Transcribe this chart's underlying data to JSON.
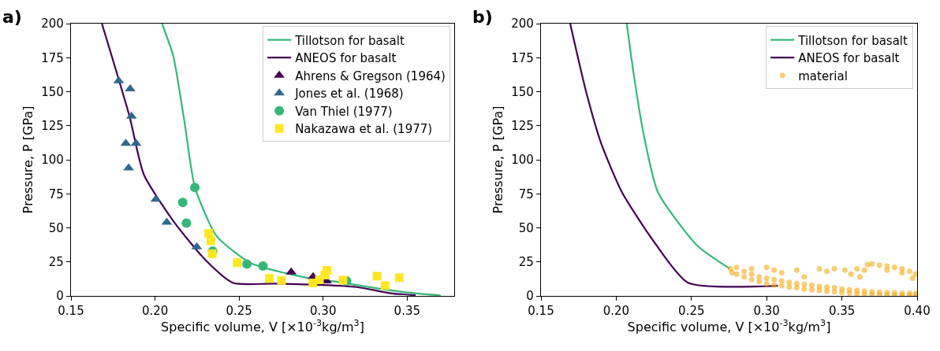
{
  "chart_data": [
    {
      "type": "line",
      "title": "a)",
      "xlabel": "Specific volume, V [×10$^{-3}$kg/m$^{3}$]",
      "ylabel": "Pressure, P [GPa]",
      "xlim": [
        0.15,
        0.378
      ],
      "xticks": [
        {
          "value": 0.15,
          "label": "0.15"
        },
        {
          "value": 0.2,
          "label": "0.20"
        },
        {
          "value": 0.25,
          "label": "0.25"
        },
        {
          "value": 0.3,
          "label": "0.30"
        },
        {
          "value": 0.35,
          "label": "0.35"
        }
      ],
      "ylim": [
        0,
        200
      ],
      "yticks": [
        0,
        25,
        50,
        75,
        100,
        125,
        150,
        175,
        200
      ],
      "grid": false,
      "legend": "top right",
      "series": [
        {
          "name": "Tillotson for basalt",
          "color": "#35b779",
          "x": [
            0.2042,
            0.2109,
            0.2175,
            0.2237,
            0.2366,
            0.2572,
            0.2901,
            0.31,
            0.33,
            0.35,
            0.37
          ],
          "values": [
            200,
            176,
            128,
            80,
            44,
            24,
            13.4,
            10,
            6,
            2.5,
            0.3
          ]
        },
        {
          "name": "ANEOS for basalt",
          "color": "#440154",
          "x": [
            0.1684,
            0.1848,
            0.1934,
            0.2115,
            0.2303,
            0.2465,
            0.27,
            0.3,
            0.32,
            0.34,
            0.355
          ],
          "values": [
            200,
            132,
            89,
            54,
            26,
            9.5,
            9,
            8,
            6.5,
            2,
            0.5
          ]
        },
        {
          "name": "Ahrens & Gregson (1964)",
          "type": "scatter",
          "marker": "triangle",
          "color": "#440154",
          "x": [
            0.281,
            0.294,
            0.302
          ],
          "values": [
            17.5,
            14,
            11
          ]
        },
        {
          "name": "Jones et al. (1968)",
          "type": "scatter",
          "marker": "triangle",
          "color": "#31688e",
          "x": [
            0.1784,
            0.1852,
            0.186,
            0.1826,
            0.1887,
            0.1843,
            0.2005,
            0.207,
            0.2248
          ],
          "values": [
            158,
            152,
            132,
            112,
            112,
            94,
            71,
            54,
            36
          ]
        },
        {
          "name": "Van Thiel (1977)",
          "type": "scatter",
          "marker": "circle",
          "color": "#35b779",
          "x": [
            0.2237,
            0.2165,
            0.2187,
            0.2343,
            0.2547,
            0.2642,
            0.314
          ],
          "values": [
            79.6,
            68.6,
            53.5,
            33,
            23.4,
            21.9,
            11
          ]
        },
        {
          "name": "Nakazawa et al. (1977)",
          "type": "scatter",
          "marker": "square",
          "color": "#fde725",
          "x": [
            0.2319,
            0.2332,
            0.234,
            0.249,
            0.268,
            0.2752,
            0.2939,
            0.2978,
            0.301,
            0.3022,
            0.3118,
            0.332,
            0.3368,
            0.3453
          ],
          "values": [
            46,
            40.5,
            31,
            24.4,
            12.8,
            11.4,
            9.5,
            11.8,
            15.3,
            18.8,
            11.6,
            14.5,
            7.6,
            13.4
          ]
        }
      ]
    },
    {
      "type": "line",
      "title": "b)",
      "xlabel": "Specific volume, V [×10$^{-3}$kg/m$^{3}$]",
      "ylabel": "Pressure, P [GPa]",
      "xlim": [
        0.15,
        0.4
      ],
      "xticks": [
        {
          "value": 0.15,
          "label": "0.15"
        },
        {
          "value": 0.2,
          "label": "0.20"
        },
        {
          "value": 0.25,
          "label": "0.25"
        },
        {
          "value": 0.3,
          "label": "0.30"
        },
        {
          "value": 0.35,
          "label": "0.35"
        },
        {
          "value": 0.4,
          "label": "0.40"
        }
      ],
      "ylim": [
        0,
        200
      ],
      "yticks": [
        0,
        25,
        50,
        75,
        100,
        125,
        150,
        175,
        200
      ],
      "grid": false,
      "legend": "top right",
      "series": [
        {
          "name": "Tillotson for basalt",
          "color": "#35b779",
          "x": [
            0.207,
            0.212,
            0.218,
            0.2278,
            0.2538,
            0.2755
          ],
          "values": [
            200,
            160,
            120,
            76,
            37,
            20
          ]
        },
        {
          "name": "ANEOS for basalt",
          "color": "#440154",
          "x": [
            0.1694,
            0.18,
            0.19,
            0.2039,
            0.225,
            0.2478,
            0.3075
          ],
          "values": [
            200,
            150,
            112,
            76,
            40,
            9.7,
            7.5
          ]
        },
        {
          "name": "material",
          "type": "scatter",
          "marker": "circle",
          "color": "#f2ab1a",
          "x": [
            0.276,
            0.277,
            0.28,
            0.28,
            0.285,
            0.285,
            0.29,
            0.29,
            0.295,
            0.295,
            0.3,
            0.3,
            0.305,
            0.305,
            0.31,
            0.31,
            0.315,
            0.315,
            0.32,
            0.32,
            0.325,
            0.325,
            0.33,
            0.33,
            0.335,
            0.335,
            0.34,
            0.34,
            0.345,
            0.345,
            0.35,
            0.35,
            0.355,
            0.355,
            0.36,
            0.36,
            0.365,
            0.365,
            0.37,
            0.37,
            0.375,
            0.375,
            0.38,
            0.38,
            0.385,
            0.385,
            0.39,
            0.39,
            0.395,
            0.395,
            0.399,
            0.399,
            0.367,
            0.37,
            0.375,
            0.38,
            0.385,
            0.39,
            0.395,
            0.399,
            0.38,
            0.39,
            0.397,
            0.29,
            0.3,
            0.305,
            0.31,
            0.32,
            0.325,
            0.335,
            0.34,
            0.345,
            0.352,
            0.356,
            0.36,
            0.365,
            0.362
          ],
          "values": [
            20,
            17,
            21,
            16,
            18,
            14,
            16,
            12,
            14,
            10.5,
            13,
            9,
            12,
            8,
            11,
            7.5,
            10,
            6.5,
            9,
            6,
            8.5,
            5,
            8,
            4.5,
            7,
            4,
            6.5,
            3.5,
            6,
            3,
            5,
            2.5,
            4.5,
            2,
            4,
            1.5,
            3.5,
            1.2,
            3,
            1,
            2.8,
            0.8,
            2.5,
            0.6,
            2.3,
            0.5,
            2,
            0.4,
            2,
            0.3,
            1.8,
            0.3,
            23,
            23.5,
            22.5,
            22,
            21,
            20,
            18,
            16,
            19,
            17,
            13,
            20,
            21,
            19,
            17,
            19,
            14,
            20,
            18,
            20,
            19,
            16,
            20,
            19,
            14
          ]
        }
      ]
    }
  ]
}
